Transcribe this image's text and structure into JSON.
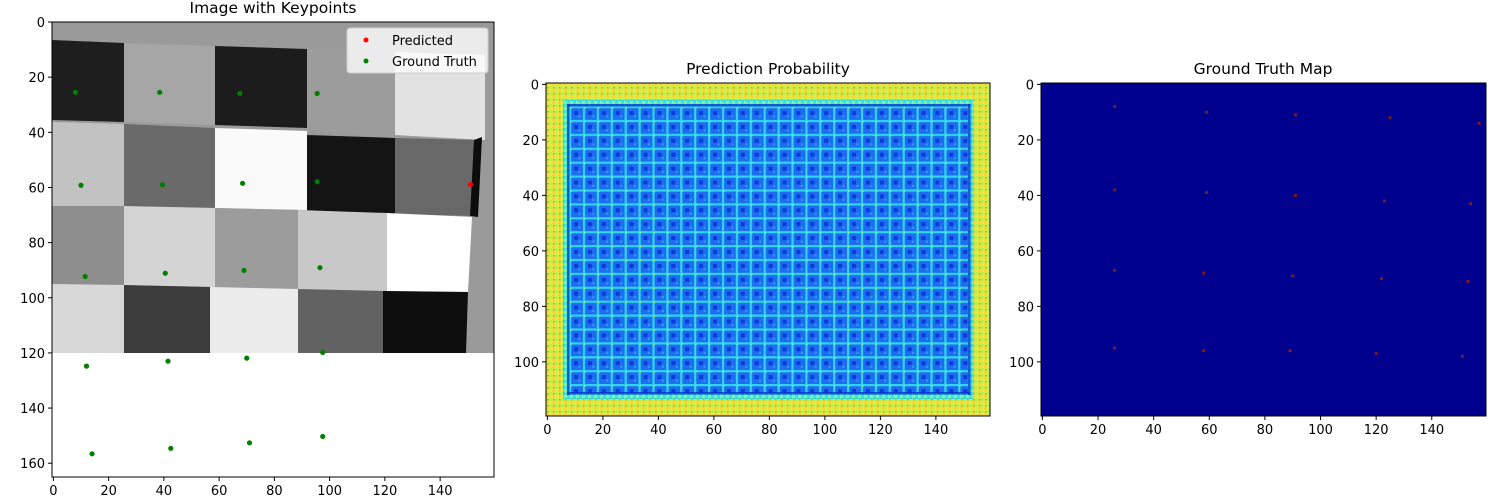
{
  "chart_data": [
    {
      "id": "keypoints",
      "type": "scatter",
      "background": "grayscale checkerboard image",
      "title": "Image with Keypoints",
      "xlabel": "",
      "ylabel": "",
      "xlim": [
        -0.5,
        159.5
      ],
      "ylim": [
        165,
        0
      ],
      "y_inverted": true,
      "xticks": [
        0,
        20,
        40,
        60,
        80,
        100,
        120,
        140
      ],
      "yticks": [
        0,
        20,
        40,
        60,
        80,
        100,
        120,
        140,
        160
      ],
      "image_extent_y": 119.5,
      "legend": {
        "placement": "upper right"
      },
      "series": [
        {
          "name": "Predicted",
          "color": "#ff0000",
          "x": [
            151
          ],
          "y": [
            58.9
          ]
        },
        {
          "name": "Ground Truth",
          "color": "#008000",
          "x": [
            8,
            38.5,
            67.5,
            95.5,
            10,
            39.5,
            68.5,
            95.5,
            11.5,
            40.5,
            69,
            96.5,
            12,
            41.5,
            70,
            97.5,
            14,
            42.5,
            71,
            97.5
          ],
          "y": [
            25.5,
            25.5,
            25.9,
            25.9,
            59.2,
            59,
            58.5,
            57.9,
            92.3,
            91.1,
            90.1,
            89.1,
            124.8,
            123,
            121.9,
            119.8,
            156.6,
            154.6,
            152.6,
            150.3
          ]
        }
      ]
    },
    {
      "id": "prediction-probability",
      "type": "heatmap",
      "colormap": "jet",
      "title": "Prediction Probability",
      "xlabel": "",
      "ylabel": "",
      "xlim": [
        -0.5,
        159.5
      ],
      "ylim": [
        119.5,
        -0.5
      ],
      "xticks": [
        0,
        20,
        40,
        60,
        80,
        100,
        120,
        140
      ],
      "yticks": [
        0,
        20,
        40,
        60,
        80,
        100
      ],
      "border_width": 8,
      "pattern_period": 5
    },
    {
      "id": "ground-truth-map",
      "type": "heatmap",
      "colormap": "jet",
      "title": "Ground Truth Map",
      "xlabel": "",
      "ylabel": "",
      "xlim": [
        -0.5,
        159.5
      ],
      "ylim": [
        119.5,
        -0.5
      ],
      "xticks": [
        0,
        20,
        40,
        60,
        80,
        100,
        120,
        140
      ],
      "yticks": [
        0,
        20,
        40,
        60,
        80,
        100
      ],
      "background_color": "#00008f",
      "points": {
        "color": "#8b1a1a",
        "x": [
          26,
          59,
          91,
          125,
          157,
          26,
          59,
          91,
          123,
          154,
          26,
          58,
          90,
          122,
          153,
          26,
          58,
          89,
          120,
          151
        ],
        "y": [
          8,
          10,
          11,
          12,
          14,
          38,
          39,
          40,
          42,
          43,
          67,
          68,
          69,
          70,
          71,
          95,
          96,
          96,
          97,
          98
        ]
      }
    }
  ]
}
